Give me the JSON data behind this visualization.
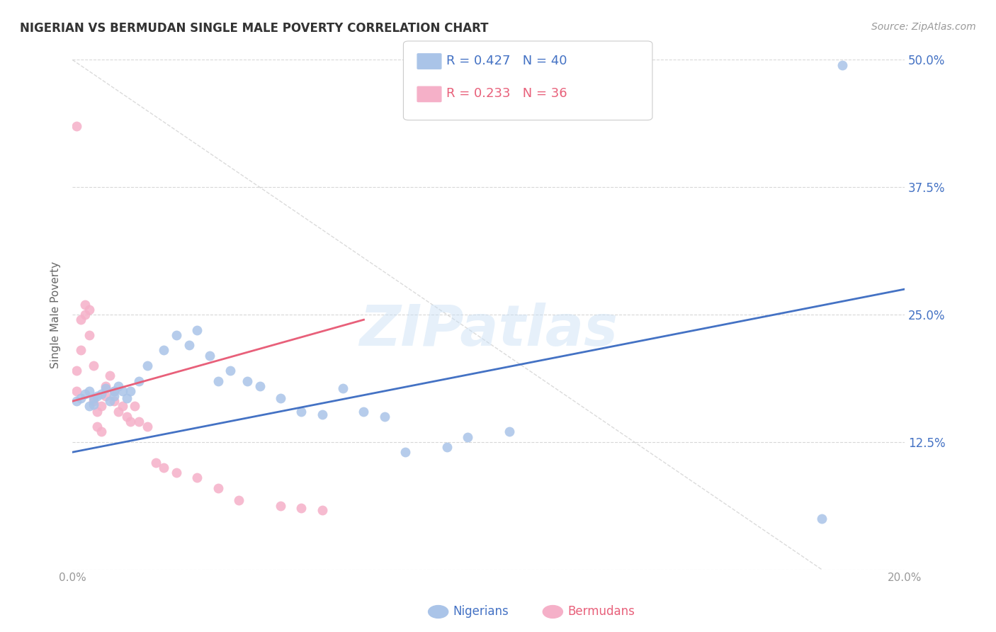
{
  "title": "NIGERIAN VS BERMUDAN SINGLE MALE POVERTY CORRELATION CHART",
  "source": "Source: ZipAtlas.com",
  "ylabel": "Single Male Poverty",
  "xlim": [
    0.0,
    0.2
  ],
  "ylim": [
    0.0,
    0.5
  ],
  "yticks": [
    0.0,
    0.125,
    0.25,
    0.375,
    0.5
  ],
  "ytick_labels": [
    "",
    "12.5%",
    "25.0%",
    "37.5%",
    "50.0%"
  ],
  "xticks": [
    0.0,
    0.05,
    0.1,
    0.15,
    0.2
  ],
  "xtick_labels": [
    "0.0%",
    "",
    "",
    "",
    "20.0%"
  ],
  "background_color": "#ffffff",
  "grid_color": "#d8d8d8",
  "nigerians_color": "#aac4e8",
  "bermudans_color": "#f5b0c8",
  "nigerians_line_color": "#4472c4",
  "bermudans_line_color": "#e8607a",
  "legend_blue_color": "#4472c4",
  "legend_pink_color": "#e8607a",
  "R_nigerians": 0.427,
  "N_nigerians": 40,
  "R_bermudans": 0.233,
  "N_bermudans": 36,
  "watermark": "ZIPatlas",
  "nigerians_x": [
    0.001,
    0.002,
    0.003,
    0.004,
    0.004,
    0.005,
    0.005,
    0.006,
    0.007,
    0.008,
    0.009,
    0.01,
    0.01,
    0.011,
    0.012,
    0.013,
    0.014,
    0.016,
    0.018,
    0.022,
    0.025,
    0.028,
    0.03,
    0.033,
    0.035,
    0.038,
    0.042,
    0.045,
    0.05,
    0.055,
    0.06,
    0.065,
    0.07,
    0.075,
    0.08,
    0.09,
    0.095,
    0.105,
    0.18,
    0.185
  ],
  "nigerians_y": [
    0.165,
    0.168,
    0.172,
    0.16,
    0.175,
    0.162,
    0.168,
    0.17,
    0.172,
    0.178,
    0.165,
    0.17,
    0.175,
    0.18,
    0.175,
    0.168,
    0.175,
    0.185,
    0.2,
    0.215,
    0.23,
    0.22,
    0.235,
    0.21,
    0.185,
    0.195,
    0.185,
    0.18,
    0.168,
    0.155,
    0.152,
    0.178,
    0.155,
    0.15,
    0.115,
    0.12,
    0.13,
    0.135,
    0.05,
    0.495
  ],
  "bermudans_x": [
    0.001,
    0.001,
    0.002,
    0.002,
    0.003,
    0.003,
    0.004,
    0.004,
    0.005,
    0.005,
    0.006,
    0.006,
    0.007,
    0.007,
    0.008,
    0.008,
    0.009,
    0.01,
    0.01,
    0.011,
    0.012,
    0.013,
    0.014,
    0.015,
    0.016,
    0.018,
    0.02,
    0.022,
    0.025,
    0.03,
    0.035,
    0.04,
    0.05,
    0.055,
    0.06,
    0.001
  ],
  "bermudans_y": [
    0.175,
    0.195,
    0.215,
    0.245,
    0.25,
    0.26,
    0.255,
    0.23,
    0.2,
    0.165,
    0.155,
    0.14,
    0.135,
    0.16,
    0.17,
    0.18,
    0.19,
    0.165,
    0.175,
    0.155,
    0.16,
    0.15,
    0.145,
    0.16,
    0.145,
    0.14,
    0.105,
    0.1,
    0.095,
    0.09,
    0.08,
    0.068,
    0.062,
    0.06,
    0.058,
    0.435
  ]
}
